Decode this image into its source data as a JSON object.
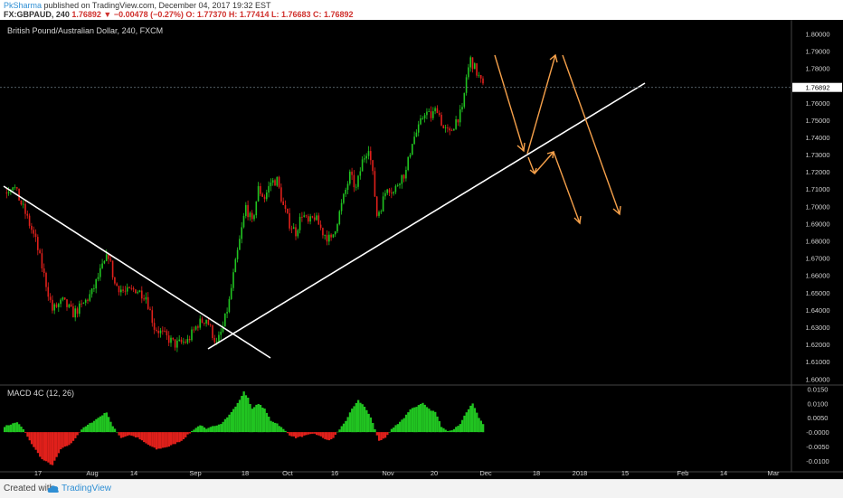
{
  "header": {
    "author": "PkSharma",
    "published": "published on TradingView.com, December 04, 2017 19:32 EST",
    "symbol": "FX:GBPAUD, 240",
    "change": "1.76892 ▼ −0.00478 (−0.27%)",
    "ohlc": "O: 1.77370 H: 1.77414 L: 1.76683 C: 1.76892"
  },
  "footer": {
    "created_with": "Created with",
    "brand": "TradingView"
  },
  "colors": {
    "up": "#21c421",
    "down": "#e0201b",
    "trend": "#ffffff",
    "arrow": "#f5a04a",
    "price_line": "#5d6b73"
  },
  "chart_data": [
    {
      "type": "candlestick",
      "title": "British Pound/Australian Dollar, 240, FXCM",
      "ylim": [
        1.5965,
        1.807
      ],
      "y_ticks": [
        "1.60000",
        "1.61000",
        "1.62000",
        "1.63000",
        "1.64000",
        "1.65000",
        "1.66000",
        "1.67000",
        "1.68000",
        "1.69000",
        "1.70000",
        "1.71000",
        "1.72000",
        "1.73000",
        "1.74000",
        "1.75000",
        "1.76000",
        "1.77000",
        "1.78000",
        "1.79000",
        "1.80000"
      ],
      "x_ticks": [
        "17",
        "Aug",
        "14",
        "Sep",
        "18",
        "Oct",
        "16",
        "Nov",
        "20",
        "Dec",
        "18",
        "2018",
        "15",
        "Feb",
        "14",
        "Mar"
      ],
      "current_price": "1.76892",
      "close_path": [
        {
          "t": 0.0,
          "v": 1.708
        },
        {
          "t": 4.0,
          "v": 1.713
        },
        {
          "t": 10.0,
          "v": 1.696
        },
        {
          "t": 15.0,
          "v": 1.68
        },
        {
          "t": 19.0,
          "v": 1.66
        },
        {
          "t": 23.0,
          "v": 1.64
        },
        {
          "t": 28.0,
          "v": 1.645
        },
        {
          "t": 33.0,
          "v": 1.638
        },
        {
          "t": 37.0,
          "v": 1.642
        },
        {
          "t": 42.0,
          "v": 1.65
        },
        {
          "t": 46.0,
          "v": 1.662
        },
        {
          "t": 50.0,
          "v": 1.672
        },
        {
          "t": 53.0,
          "v": 1.655
        },
        {
          "t": 58.0,
          "v": 1.65
        },
        {
          "t": 63.0,
          "v": 1.652
        },
        {
          "t": 68.0,
          "v": 1.648
        },
        {
          "t": 72.0,
          "v": 1.63
        },
        {
          "t": 77.0,
          "v": 1.625
        },
        {
          "t": 82.0,
          "v": 1.62
        },
        {
          "t": 88.0,
          "v": 1.622
        },
        {
          "t": 93.0,
          "v": 1.632
        },
        {
          "t": 97.0,
          "v": 1.635
        },
        {
          "t": 102.0,
          "v": 1.62
        },
        {
          "t": 105.0,
          "v": 1.63
        },
        {
          "t": 108.0,
          "v": 1.645
        },
        {
          "t": 110.0,
          "v": 1.66
        },
        {
          "t": 113.0,
          "v": 1.68
        },
        {
          "t": 116.0,
          "v": 1.7
        },
        {
          "t": 119.0,
          "v": 1.69
        },
        {
          "t": 122.0,
          "v": 1.71
        },
        {
          "t": 125.0,
          "v": 1.705
        },
        {
          "t": 128.0,
          "v": 1.714
        },
        {
          "t": 131.0,
          "v": 1.715
        },
        {
          "t": 134.0,
          "v": 1.7
        },
        {
          "t": 137.0,
          "v": 1.69
        },
        {
          "t": 140.0,
          "v": 1.685
        },
        {
          "t": 143.0,
          "v": 1.696
        },
        {
          "t": 146.0,
          "v": 1.69
        },
        {
          "t": 149.0,
          "v": 1.694
        },
        {
          "t": 153.0,
          "v": 1.685
        },
        {
          "t": 157.0,
          "v": 1.68
        },
        {
          "t": 160.0,
          "v": 1.692
        },
        {
          "t": 163.0,
          "v": 1.705
        },
        {
          "t": 166.0,
          "v": 1.718
        },
        {
          "t": 169.0,
          "v": 1.71
        },
        {
          "t": 172.0,
          "v": 1.726
        },
        {
          "t": 175.0,
          "v": 1.735
        },
        {
          "t": 177.0,
          "v": 1.718
        },
        {
          "t": 179.0,
          "v": 1.695
        },
        {
          "t": 181.0,
          "v": 1.7
        },
        {
          "t": 184.0,
          "v": 1.712
        },
        {
          "t": 187.0,
          "v": 1.708
        },
        {
          "t": 190.0,
          "v": 1.716
        },
        {
          "t": 193.0,
          "v": 1.72
        },
        {
          "t": 196.0,
          "v": 1.738
        },
        {
          "t": 199.0,
          "v": 1.745
        },
        {
          "t": 202.0,
          "v": 1.755
        },
        {
          "t": 205.0,
          "v": 1.752
        },
        {
          "t": 208.0,
          "v": 1.757
        },
        {
          "t": 211.0,
          "v": 1.745
        },
        {
          "t": 214.0,
          "v": 1.742
        },
        {
          "t": 217.0,
          "v": 1.75
        },
        {
          "t": 220.0,
          "v": 1.755
        },
        {
          "t": 222.0,
          "v": 1.775
        },
        {
          "t": 224.0,
          "v": 1.785
        },
        {
          "t": 226.0,
          "v": 1.78
        },
        {
          "t": 228.0,
          "v": 1.775
        },
        {
          "t": 230.0,
          "v": 1.769
        }
      ]
    },
    {
      "type": "histogram",
      "title": "MACD 4C (12, 26)",
      "ylim": [
        -0.0138,
        0.0164
      ],
      "y_ticks": [
        "0.0150",
        "0.0100",
        "0.0050",
        "-0.0000",
        "-0.0050",
        "-0.0100"
      ],
      "values_path": [
        {
          "t": 0.0,
          "v": 0.002
        },
        {
          "t": 6.0,
          "v": 0.0035
        },
        {
          "t": 9.0,
          "v": 0.001
        },
        {
          "t": 12.0,
          "v": -0.003
        },
        {
          "t": 18.0,
          "v": -0.0095
        },
        {
          "t": 23.0,
          "v": -0.0115
        },
        {
          "t": 27.0,
          "v": -0.006
        },
        {
          "t": 32.0,
          "v": -0.004
        },
        {
          "t": 37.0,
          "v": 0.001
        },
        {
          "t": 41.0,
          "v": 0.003
        },
        {
          "t": 45.0,
          "v": 0.005
        },
        {
          "t": 49.0,
          "v": 0.007
        },
        {
          "t": 52.0,
          "v": 0.002
        },
        {
          "t": 56.0,
          "v": -0.002
        },
        {
          "t": 60.0,
          "v": -0.001
        },
        {
          "t": 64.0,
          "v": -0.002
        },
        {
          "t": 68.0,
          "v": -0.004
        },
        {
          "t": 73.0,
          "v": -0.006
        },
        {
          "t": 79.0,
          "v": -0.005
        },
        {
          "t": 85.0,
          "v": -0.003
        },
        {
          "t": 88.0,
          "v": -0.001
        },
        {
          "t": 91.0,
          "v": 0.001
        },
        {
          "t": 94.0,
          "v": 0.0025
        },
        {
          "t": 97.0,
          "v": 0.001
        },
        {
          "t": 100.0,
          "v": 0.002
        },
        {
          "t": 104.0,
          "v": 0.003
        },
        {
          "t": 108.0,
          "v": 0.006
        },
        {
          "t": 112.0,
          "v": 0.01
        },
        {
          "t": 115.0,
          "v": 0.014
        },
        {
          "t": 117.0,
          "v": 0.012
        },
        {
          "t": 119.0,
          "v": 0.008
        },
        {
          "t": 122.0,
          "v": 0.01
        },
        {
          "t": 125.0,
          "v": 0.008
        },
        {
          "t": 128.0,
          "v": 0.004
        },
        {
          "t": 131.0,
          "v": 0.003
        },
        {
          "t": 134.0,
          "v": 0.001
        },
        {
          "t": 137.0,
          "v": -0.001
        },
        {
          "t": 140.0,
          "v": -0.002
        },
        {
          "t": 143.0,
          "v": -0.0015
        },
        {
          "t": 146.0,
          "v": -0.001
        },
        {
          "t": 149.0,
          "v": -0.0005
        },
        {
          "t": 153.0,
          "v": -0.002
        },
        {
          "t": 156.0,
          "v": -0.003
        },
        {
          "t": 158.0,
          "v": -0.002
        },
        {
          "t": 161.0,
          "v": 0.001
        },
        {
          "t": 164.0,
          "v": 0.004
        },
        {
          "t": 167.0,
          "v": 0.008
        },
        {
          "t": 170.0,
          "v": 0.011
        },
        {
          "t": 173.0,
          "v": 0.009
        },
        {
          "t": 176.0,
          "v": 0.005
        },
        {
          "t": 178.0,
          "v": 0.001
        },
        {
          "t": 180.0,
          "v": -0.003
        },
        {
          "t": 183.0,
          "v": -0.002
        },
        {
          "t": 186.0,
          "v": 0.001
        },
        {
          "t": 189.0,
          "v": 0.003
        },
        {
          "t": 192.0,
          "v": 0.005
        },
        {
          "t": 195.0,
          "v": 0.008
        },
        {
          "t": 198.0,
          "v": 0.009
        },
        {
          "t": 201.0,
          "v": 0.01
        },
        {
          "t": 204.0,
          "v": 0.008
        },
        {
          "t": 207.0,
          "v": 0.007
        },
        {
          "t": 210.0,
          "v": 0.002
        },
        {
          "t": 213.0,
          "v": 0.0005
        },
        {
          "t": 216.0,
          "v": 0.001
        },
        {
          "t": 219.0,
          "v": 0.003
        },
        {
          "t": 222.0,
          "v": 0.007
        },
        {
          "t": 225.0,
          "v": 0.01
        },
        {
          "t": 228.0,
          "v": 0.005
        },
        {
          "t": 230.0,
          "v": 0.003
        }
      ]
    }
  ]
}
